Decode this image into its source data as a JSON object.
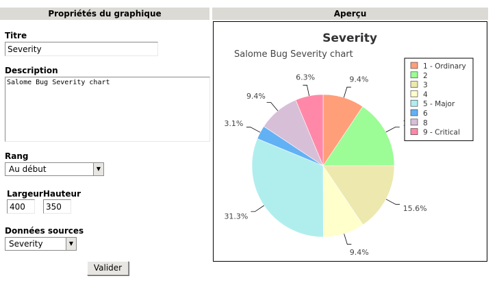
{
  "left_header": "Propriétés du graphique",
  "right_header": "Aperçu",
  "form": {
    "title_label": "Titre",
    "title_value": "Severity",
    "description_label": "Description",
    "description_value": "Salome Bug Severity chart",
    "rank_label": "Rang",
    "rank_value": "Au début",
    "width_label": "Largeur",
    "width_value": "400",
    "height_label": "Hauteur",
    "height_value": "350",
    "source_label": "Données sources",
    "source_value": "Severity",
    "submit_label": "Valider"
  },
  "chart_data": {
    "type": "pie",
    "title": "Severity",
    "subtitle": "Salome Bug Severity chart",
    "legend_position": "top-right",
    "slices": [
      {
        "name": "1 - Ordinary",
        "value": 9.4,
        "label": "9.4%",
        "color": "#ff9f7a"
      },
      {
        "name": "2",
        "value": 15.6,
        "label": "15.6%",
        "color": "#9cfc96"
      },
      {
        "name": "3",
        "value": 15.6,
        "label": "15.6%",
        "color": "#ede8ae"
      },
      {
        "name": "4",
        "value": 9.4,
        "label": "9.4%",
        "color": "#ffffcc"
      },
      {
        "name": "5 - Major",
        "value": 31.3,
        "label": "31.3%",
        "color": "#b0eeee"
      },
      {
        "name": "6",
        "value": 3.1,
        "label": "3.1%",
        "color": "#62b1f5"
      },
      {
        "name": "8",
        "value": 9.4,
        "label": "9.4%",
        "color": "#d8bfd8"
      },
      {
        "name": "9 - Critical",
        "value": 6.3,
        "label": "6.3%",
        "color": "#ff88a8"
      }
    ]
  }
}
